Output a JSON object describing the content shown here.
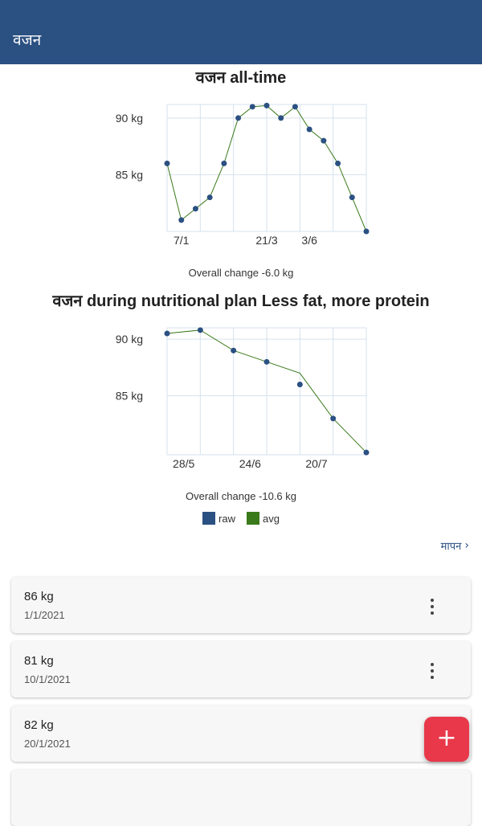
{
  "appbar": {
    "title": "वजन"
  },
  "chart_data": [
    {
      "type": "line",
      "title": "वजन all-time",
      "x_tick_labels": [
        "7/1",
        "21/3",
        "3/6"
      ],
      "y_tick_labels": [
        "90 kg",
        "85 kg"
      ],
      "y_ticks": [
        90,
        85
      ],
      "ylim": [
        80.0,
        91.2
      ],
      "grid": true,
      "footer": "Overall change -6.0 kg",
      "series": [
        {
          "name": "raw",
          "color": "#2b5082",
          "points": [
            [
              0,
              86
            ],
            [
              1,
              81
            ],
            [
              2,
              82
            ],
            [
              3,
              83
            ],
            [
              4,
              86
            ],
            [
              5,
              90
            ],
            [
              6,
              91
            ],
            [
              7,
              91.1
            ],
            [
              8,
              90
            ],
            [
              9,
              91
            ],
            [
              10,
              89
            ],
            [
              11,
              88
            ],
            [
              12,
              86
            ],
            [
              13,
              83
            ],
            [
              14,
              80
            ]
          ]
        },
        {
          "name": "avg",
          "color": "#3a7a1a",
          "points": [
            [
              0,
              86
            ],
            [
              1,
              81
            ],
            [
              2,
              82
            ],
            [
              3,
              83
            ],
            [
              4,
              86
            ],
            [
              5,
              90
            ],
            [
              6,
              91
            ],
            [
              7,
              91.1
            ],
            [
              8,
              90
            ],
            [
              9,
              91
            ],
            [
              10,
              89
            ],
            [
              11,
              88
            ],
            [
              12,
              86
            ],
            [
              13,
              83
            ],
            [
              14,
              80
            ]
          ]
        }
      ]
    },
    {
      "type": "line",
      "title": "वजन during nutritional plan Less fat, more protein",
      "x_tick_labels": [
        "28/5",
        "24/6",
        "20/7"
      ],
      "y_tick_labels": [
        "90 kg",
        "85 kg"
      ],
      "y_ticks": [
        90,
        85
      ],
      "ylim": [
        79.8,
        91.0
      ],
      "grid": true,
      "footer": "Overall change -10.6 kg",
      "series": [
        {
          "name": "raw",
          "color": "#2b5082",
          "points": [
            [
              0,
              90.5
            ],
            [
              1,
              90.8
            ],
            [
              2,
              89
            ],
            [
              3,
              88
            ],
            [
              4,
              86
            ],
            [
              5,
              83
            ],
            [
              6,
              80
            ]
          ]
        },
        {
          "name": "avg",
          "color": "#3a7a1a",
          "points": [
            [
              0,
              90.5
            ],
            [
              1,
              90.8
            ],
            [
              2,
              89
            ],
            [
              3,
              88
            ],
            [
              4,
              87
            ],
            [
              5,
              83
            ],
            [
              6,
              80
            ]
          ]
        }
      ]
    }
  ],
  "legend": {
    "raw": "raw",
    "avg": "avg"
  },
  "measurements_link": "मापन",
  "entries": [
    {
      "weight": "86 kg",
      "date": "1/1/2021"
    },
    {
      "weight": "81 kg",
      "date": "10/1/2021"
    },
    {
      "weight": "82 kg",
      "date": "20/1/2021"
    }
  ],
  "fab": {
    "icon": "plus-icon",
    "color": "#e8384a"
  }
}
